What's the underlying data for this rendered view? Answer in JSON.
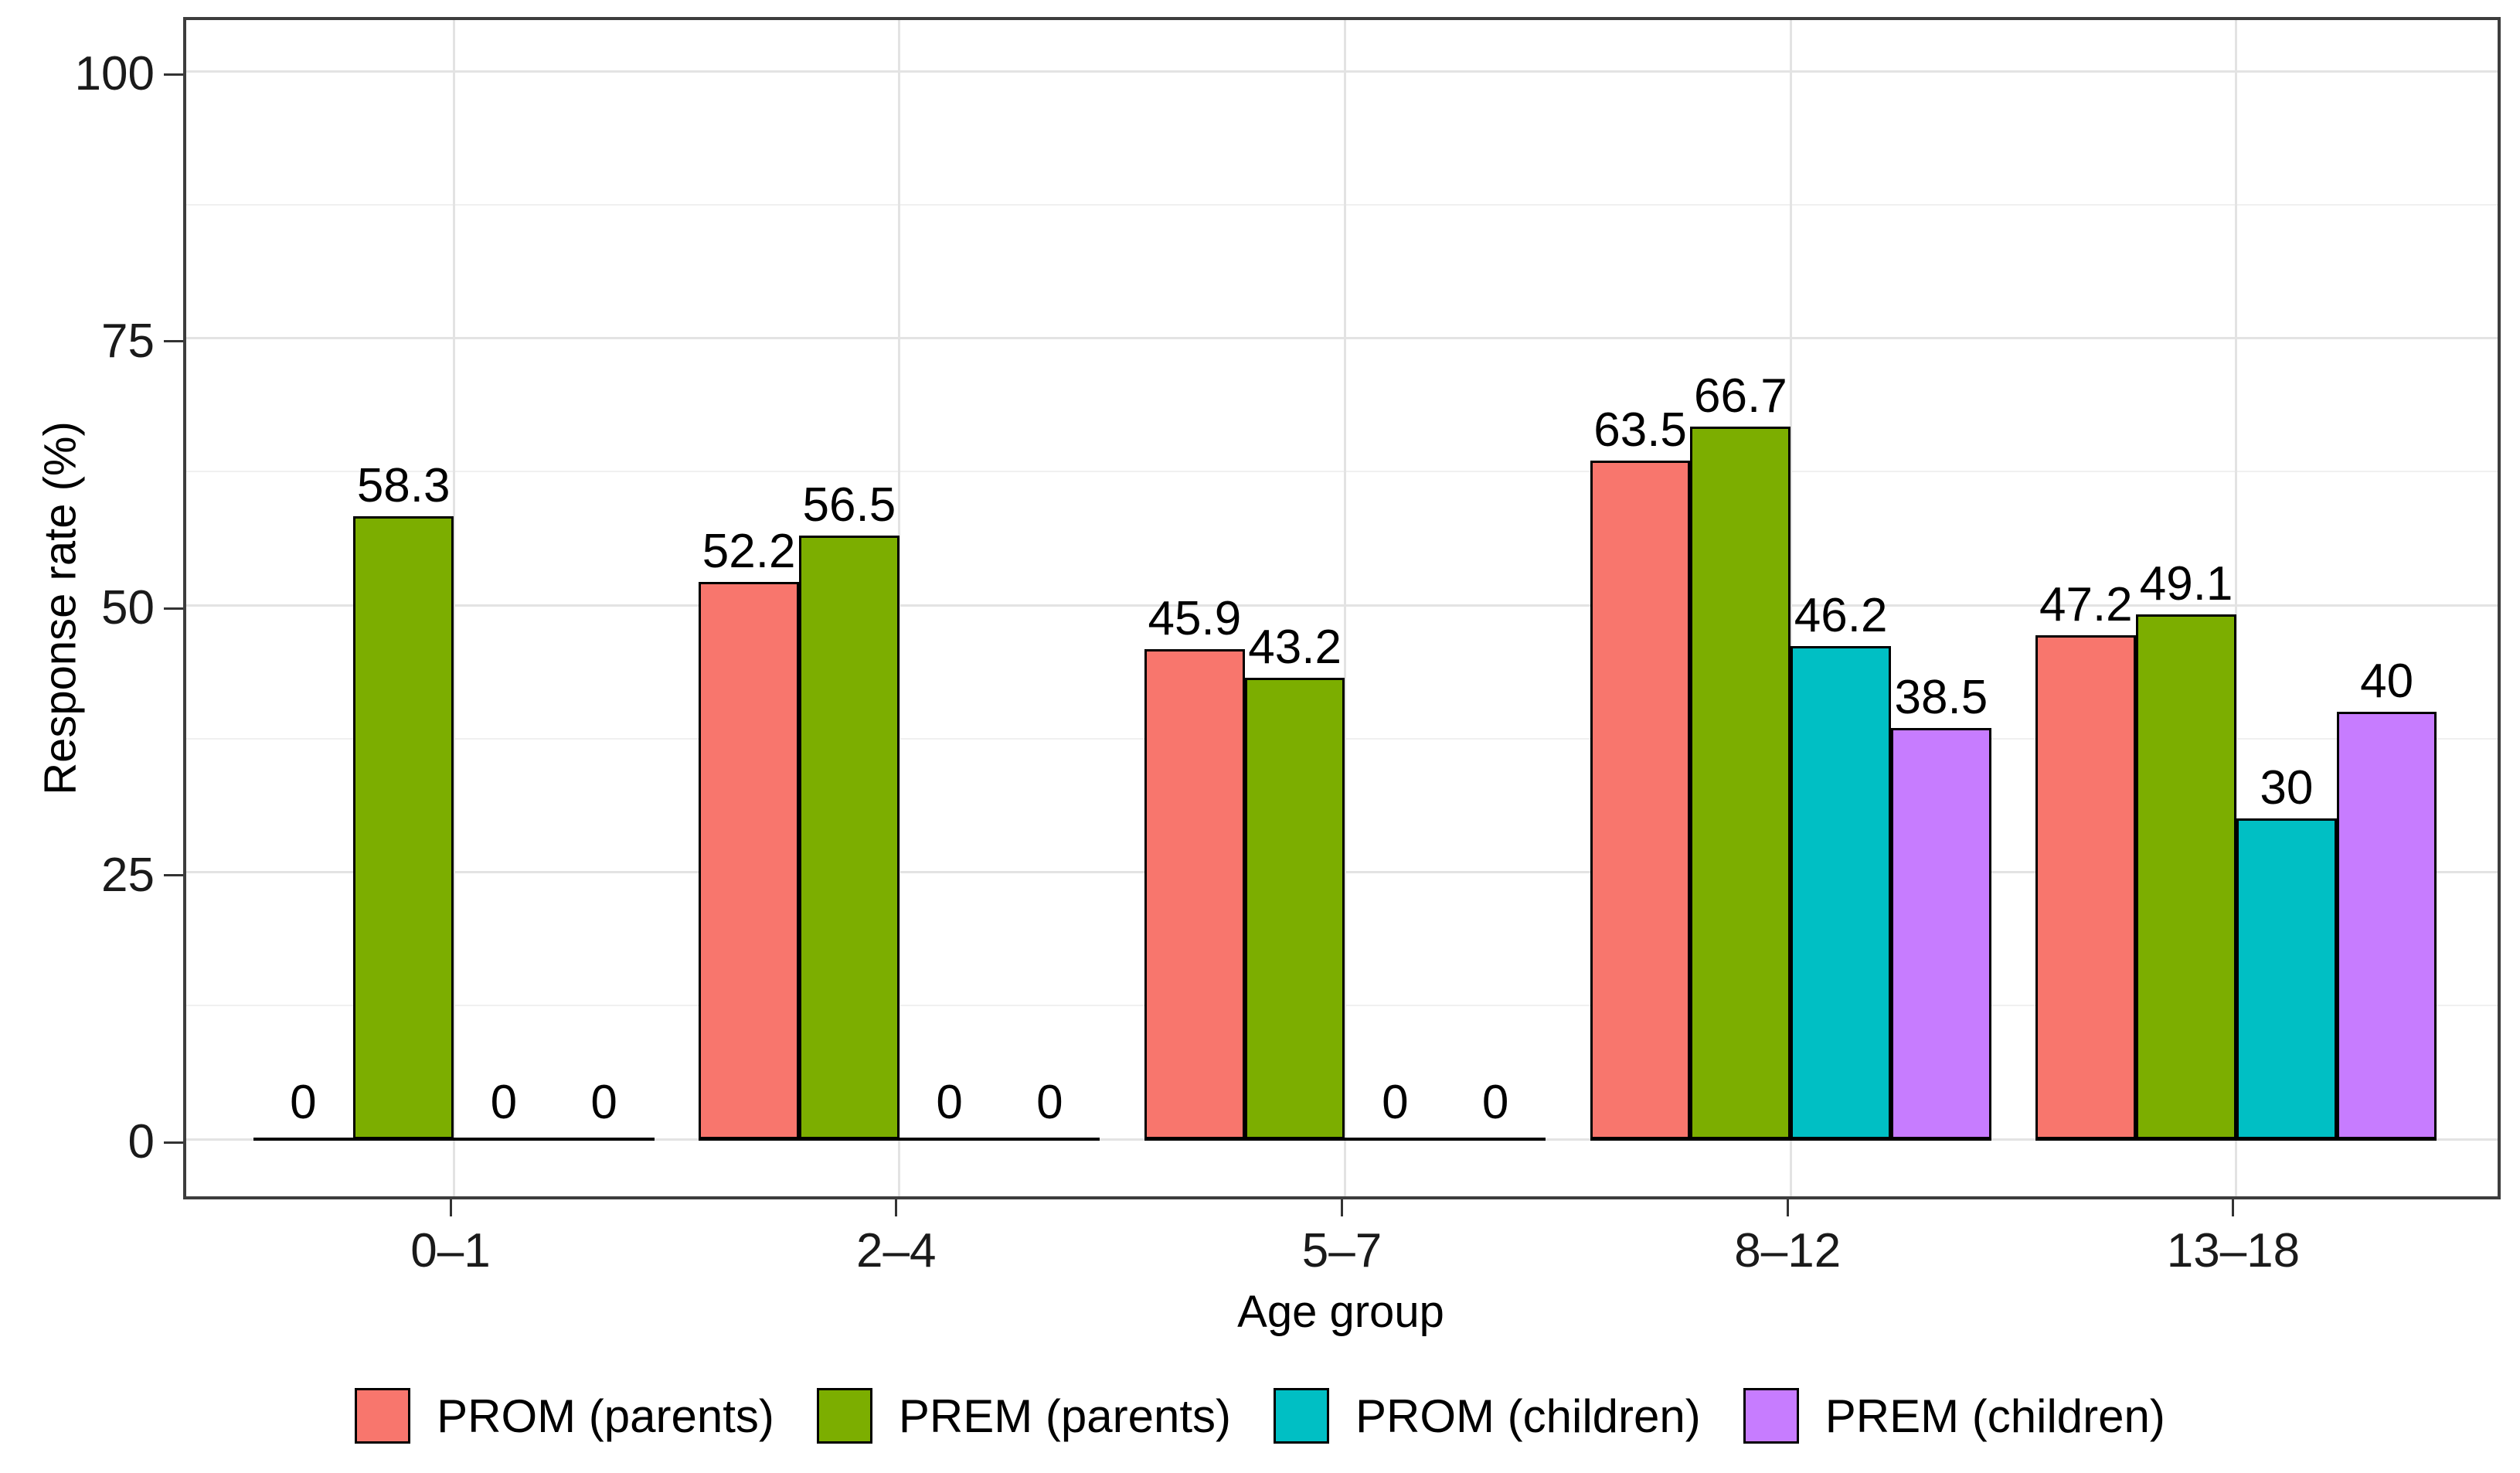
{
  "chart_data": {
    "type": "bar",
    "title": "",
    "xlabel": "Age group",
    "ylabel": "Response rate (%)",
    "categories": [
      "0–1",
      "2–4",
      "5–7",
      "8–12",
      "13–18"
    ],
    "series": [
      {
        "name": "PROM (parents)",
        "color": "#F8766D",
        "values": [
          0,
          52.2,
          45.9,
          63.5,
          47.2
        ],
        "labels": [
          "0",
          "52.2",
          "45.9",
          "63.5",
          "47.2"
        ]
      },
      {
        "name": "PREM (parents)",
        "color": "#7CAE00",
        "values": [
          58.3,
          56.5,
          43.2,
          66.7,
          49.1
        ],
        "labels": [
          "58.3",
          "56.5",
          "43.2",
          "66.7",
          "49.1"
        ]
      },
      {
        "name": "PROM (children)",
        "color": "#00BFC4",
        "values": [
          0,
          0,
          0,
          46.2,
          30
        ],
        "labels": [
          "0",
          "0",
          "0",
          "46.2",
          "30"
        ]
      },
      {
        "name": "PREM (children)",
        "color": "#C77CFF",
        "values": [
          0,
          0,
          0,
          38.5,
          40
        ],
        "labels": [
          "0",
          "0",
          "0",
          "38.5",
          "40"
        ]
      }
    ],
    "y_ticks": [
      "0",
      "25",
      "50",
      "75",
      "100"
    ],
    "y_tick_values": [
      0,
      25,
      50,
      75,
      100
    ],
    "y_minor_tick_values": [
      12.5,
      37.5,
      62.5,
      87.5
    ],
    "ylim": [
      -5.3,
      105.4
    ],
    "grid": true,
    "legend_position": "bottom",
    "bar_outline_color": "#000000",
    "gridline_color": "#e3e3e3"
  }
}
